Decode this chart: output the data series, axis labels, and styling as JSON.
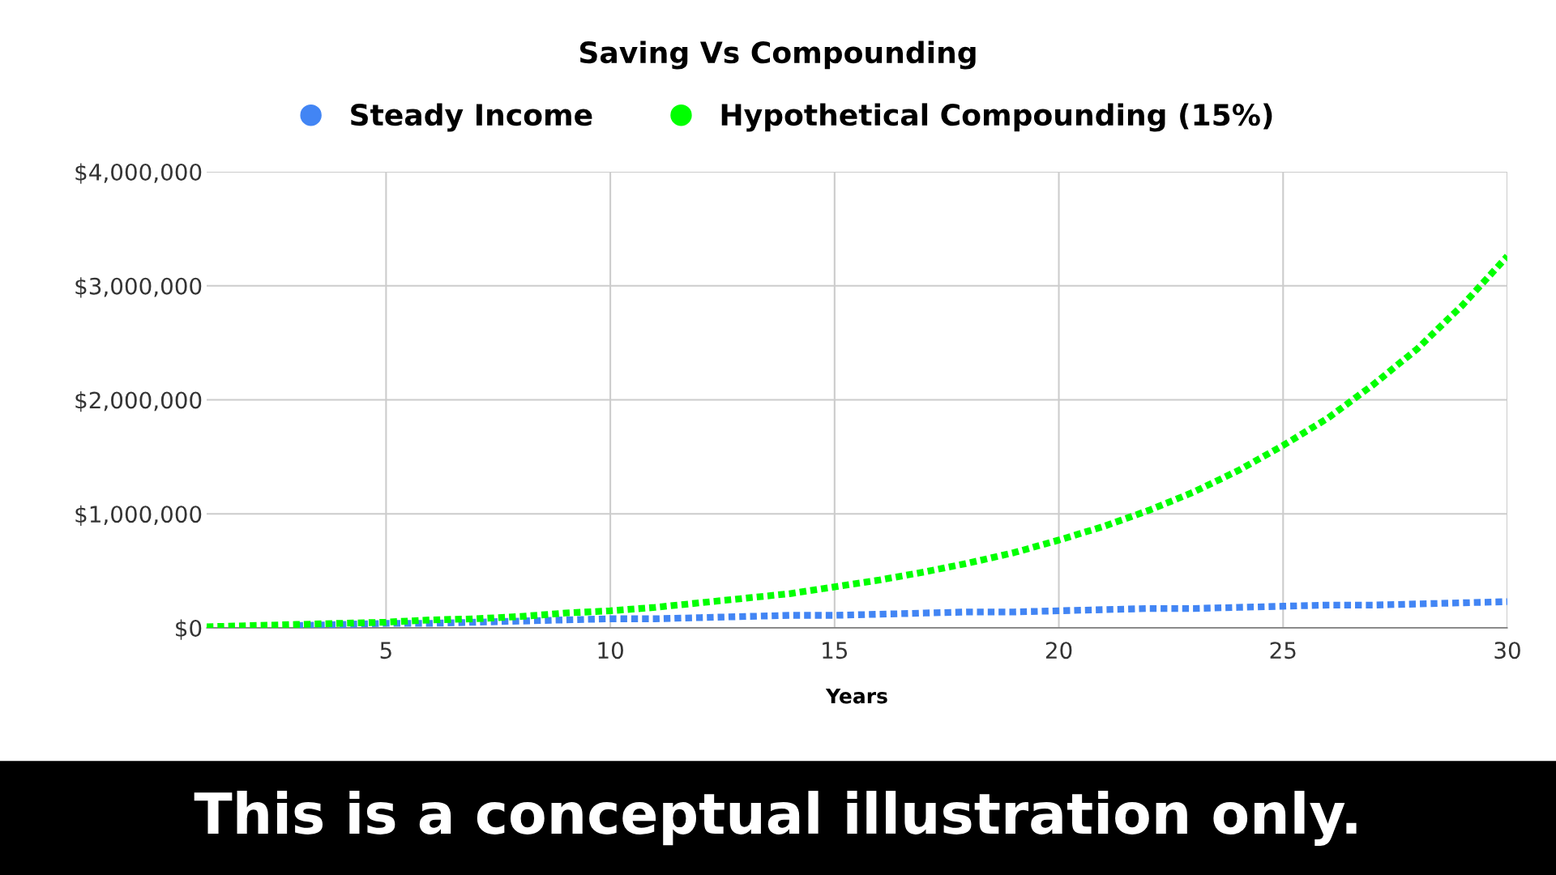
{
  "chart_data": {
    "type": "line",
    "title": "Saving Vs Compounding",
    "xlabel": "Years",
    "x": [
      1,
      2,
      3,
      4,
      5,
      6,
      7,
      8,
      9,
      10,
      11,
      12,
      13,
      14,
      15,
      16,
      17,
      18,
      19,
      20,
      21,
      22,
      23,
      24,
      25,
      26,
      27,
      28,
      29,
      30
    ],
    "series": [
      {
        "name": "Steady Income",
        "color": "#4285f4",
        "values": [
          null,
          null,
          20000,
          30000,
          40000,
          40000,
          50000,
          60000,
          70000,
          80000,
          80000,
          90000,
          100000,
          110000,
          110000,
          120000,
          130000,
          140000,
          140000,
          150000,
          160000,
          170000,
          170000,
          180000,
          190000,
          200000,
          200000,
          210000,
          220000,
          230000
        ]
      },
      {
        "name": "Hypothetical Compounding (15%)",
        "color": "#00ff00",
        "values": [
          10000,
          20000,
          30000,
          40000,
          50000,
          70000,
          80000,
          100000,
          130000,
          150000,
          180000,
          220000,
          260000,
          300000,
          360000,
          420000,
          490000,
          570000,
          660000,
          770000,
          890000,
          1030000,
          1190000,
          1380000,
          1600000,
          1840000,
          2130000,
          2450000,
          2830000,
          3260000
        ]
      }
    ],
    "xlim": [
      1,
      30
    ],
    "xticks": [
      5,
      10,
      15,
      20,
      25,
      30
    ],
    "ylim": [
      0,
      4000000
    ],
    "yticks": [
      {
        "value": 0,
        "label": "$0"
      },
      {
        "value": 1000000,
        "label": "$1,000,000"
      },
      {
        "value": 2000000,
        "label": "$2,000,000"
      },
      {
        "value": 3000000,
        "label": "$3,000,000"
      },
      {
        "value": 4000000,
        "label": "$4,000,000"
      }
    ],
    "grid": true,
    "legend": "top",
    "line_style": "dotted",
    "marker": "none",
    "annotations": [
      "This is a conceptual illustration only."
    ]
  }
}
